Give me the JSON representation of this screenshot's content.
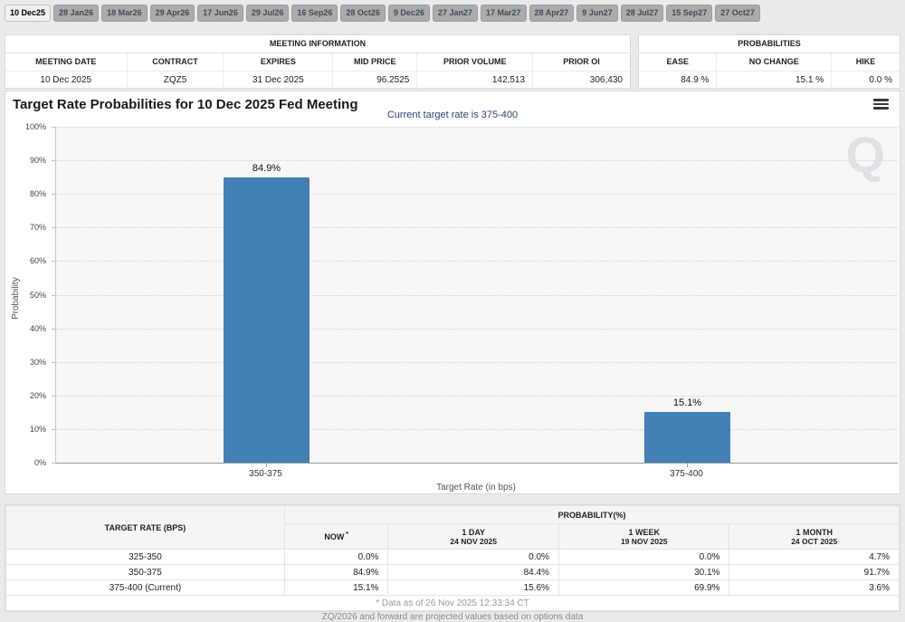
{
  "tabs": {
    "items": [
      "10 Dec25",
      "28 Jan26",
      "18 Mar26",
      "29 Apr26",
      "17 Jun26",
      "29 Jul26",
      "16 Sep26",
      "28 Oct26",
      "9 Dec26",
      "27 Jan27",
      "17 Mar27",
      "28 Apr27",
      "9 Jun27",
      "28 Jul27",
      "15 Sep27",
      "27 Oct27"
    ],
    "selected_index": 0
  },
  "meeting_info": {
    "title": "MEETING INFORMATION",
    "columns": [
      "MEETING DATE",
      "CONTRACT",
      "EXPIRES",
      "MID PRICE",
      "PRIOR VOLUME",
      "PRIOR OI"
    ],
    "values": [
      "10 Dec 2025",
      "ZQZ5",
      "31 Dec 2025",
      "96.2525",
      "142,513",
      "306,430"
    ]
  },
  "probabilities_summary": {
    "title": "PROBABILITIES",
    "columns": [
      "EASE",
      "NO CHANGE",
      "HIKE"
    ],
    "values": [
      "84.9 %",
      "15.1 %",
      "0.0 %"
    ]
  },
  "chart": {
    "watermark": "Q"
  },
  "icons": {
    "menu": "hamburger-menu-icon"
  },
  "chart_data": {
    "type": "bar",
    "title": "Target Rate Probabilities for 10 Dec 2025 Fed Meeting",
    "subtitle": "Current target rate is 375-400",
    "categories": [
      "350-375",
      "375-400"
    ],
    "values": [
      84.9,
      15.1
    ],
    "value_labels": [
      "84.9%",
      "15.1%"
    ],
    "xlabel": "Target Rate (in bps)",
    "ylabel": "Probability",
    "ylim": [
      0,
      100
    ],
    "ytick_step": 10,
    "ytick_suffix": "%",
    "grid": "dotted-horizontal",
    "legend": "none",
    "bar_color": "#4380b6"
  },
  "probability_table": {
    "corner_header": "TARGET RATE (BPS)",
    "group_header": "PROBABILITY(%)",
    "columns": [
      {
        "label": "NOW",
        "sup": "*",
        "sub": ""
      },
      {
        "label": "1 DAY",
        "sub": "24 NOV 2025"
      },
      {
        "label": "1 WEEK",
        "sub": "19 NOV 2025"
      },
      {
        "label": "1 MONTH",
        "sub": "24 OCT 2025"
      }
    ],
    "rows": [
      {
        "rate": "325-350",
        "values": [
          "0.0%",
          "0.0%",
          "0.0%",
          "4.7%"
        ]
      },
      {
        "rate": "350-375",
        "values": [
          "84.9%",
          "84.4%",
          "30.1%",
          "91.7%"
        ]
      },
      {
        "rate": "375-400 (Current)",
        "values": [
          "15.1%",
          "15.6%",
          "69.9%",
          "3.6%"
        ]
      }
    ],
    "footnote": "* Data as of 26 Nov 2025 12:33:34 CT"
  },
  "footer": {
    "clipped_note": "ZQ/2026 and forward are projected values based on options data"
  },
  "colors": {
    "bar": "#4380b6",
    "now_highlight": "#f8f8de",
    "subtitle_text": "#2c4270",
    "tab_selected_bg": "#f1f1f1",
    "tab_bg": "#ababab"
  }
}
